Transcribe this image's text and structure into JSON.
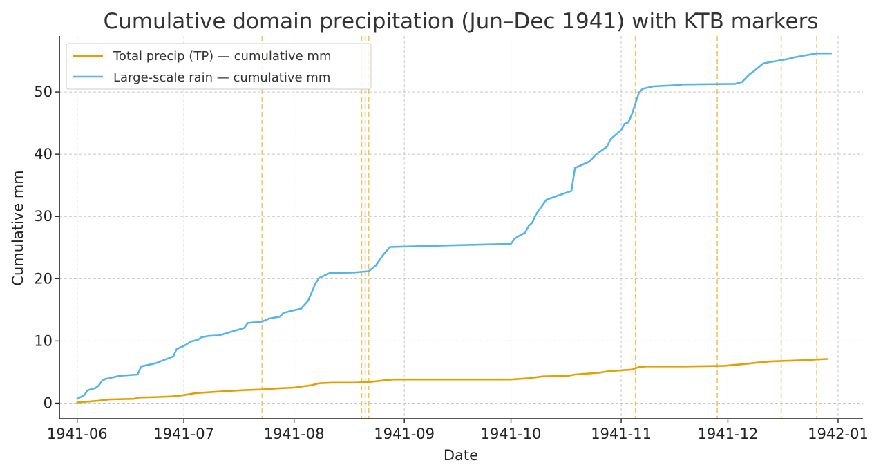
{
  "chart_data": {
    "type": "line",
    "title": "Cumulative domain precipitation (Jun–Dec 1941) with KTB markers",
    "xlabel": "Date",
    "ylabel": "Cumulative mm",
    "xlim": [
      "1941-05-27",
      "1942-01-08"
    ],
    "ylim": [
      -2.5,
      59
    ],
    "x_ticks": [
      "1941-06-01",
      "1941-07-01",
      "1941-08-01",
      "1941-09-01",
      "1941-10-01",
      "1941-11-01",
      "1941-12-01",
      "1942-01-01"
    ],
    "x_tick_labels": [
      "1941-06",
      "1941-07",
      "1941-08",
      "1941-09",
      "1941-10",
      "1941-11",
      "1941-12",
      "1942-01"
    ],
    "y_ticks": [
      0,
      10,
      20,
      30,
      40,
      50
    ],
    "y_tick_labels": [
      "0",
      "10",
      "20",
      "30",
      "40",
      "50"
    ],
    "grid": true,
    "legend_position": "top-left",
    "markers": {
      "color": "#f2c45a",
      "dates": [
        "1941-07-23",
        "1941-08-20",
        "1941-08-21",
        "1941-08-22",
        "1941-11-05",
        "1941-11-28",
        "1941-12-16",
        "1941-12-26"
      ]
    },
    "series": [
      {
        "name": "Total precip (TP) — cumulative mm",
        "color": "#e69f00",
        "points": [
          [
            "1941-06-01",
            0.1
          ],
          [
            "1941-06-05",
            0.3
          ],
          [
            "1941-06-07",
            0.4
          ],
          [
            "1941-06-10",
            0.6
          ],
          [
            "1941-06-17",
            0.7
          ],
          [
            "1941-06-18",
            0.9
          ],
          [
            "1941-06-24",
            1.0
          ],
          [
            "1941-06-28",
            1.1
          ],
          [
            "1941-07-01",
            1.3
          ],
          [
            "1941-07-04",
            1.6
          ],
          [
            "1941-07-09",
            1.8
          ],
          [
            "1941-07-18",
            2.1
          ],
          [
            "1941-07-23",
            2.2
          ],
          [
            "1941-07-28",
            2.4
          ],
          [
            "1941-08-01",
            2.5
          ],
          [
            "1941-08-06",
            2.9
          ],
          [
            "1941-08-08",
            3.2
          ],
          [
            "1941-08-12",
            3.3
          ],
          [
            "1941-08-18",
            3.3
          ],
          [
            "1941-08-22",
            3.4
          ],
          [
            "1941-08-27",
            3.7
          ],
          [
            "1941-08-29",
            3.8
          ],
          [
            "1941-09-15",
            3.8
          ],
          [
            "1941-10-01",
            3.8
          ],
          [
            "1941-10-06",
            4.0
          ],
          [
            "1941-10-10",
            4.3
          ],
          [
            "1941-10-17",
            4.4
          ],
          [
            "1941-10-19",
            4.6
          ],
          [
            "1941-10-26",
            4.9
          ],
          [
            "1941-10-28",
            5.1
          ],
          [
            "1941-11-04",
            5.4
          ],
          [
            "1941-11-06",
            5.8
          ],
          [
            "1941-11-08",
            5.9
          ],
          [
            "1941-11-19",
            5.9
          ],
          [
            "1941-11-30",
            6.0
          ],
          [
            "1941-12-06",
            6.3
          ],
          [
            "1941-12-09",
            6.5
          ],
          [
            "1941-12-13",
            6.7
          ],
          [
            "1941-12-22",
            6.9
          ],
          [
            "1941-12-29",
            7.1
          ]
        ]
      },
      {
        "name": "Large-scale rain — cumulative mm",
        "color": "#56b4e9",
        "points": [
          [
            "1941-06-01",
            0.7
          ],
          [
            "1941-06-02",
            1.0
          ],
          [
            "1941-06-03",
            1.3
          ],
          [
            "1941-06-04",
            2.1
          ],
          [
            "1941-06-06",
            2.4
          ],
          [
            "1941-06-07",
            2.8
          ],
          [
            "1941-06-08",
            3.6
          ],
          [
            "1941-06-09",
            3.9
          ],
          [
            "1941-06-10",
            4.0
          ],
          [
            "1941-06-13",
            4.4
          ],
          [
            "1941-06-18",
            4.6
          ],
          [
            "1941-06-19",
            5.9
          ],
          [
            "1941-06-23",
            6.4
          ],
          [
            "1941-06-28",
            7.5
          ],
          [
            "1941-06-29",
            8.7
          ],
          [
            "1941-07-01",
            9.2
          ],
          [
            "1941-07-03",
            9.9
          ],
          [
            "1941-07-05",
            10.2
          ],
          [
            "1941-07-06",
            10.6
          ],
          [
            "1941-07-08",
            10.8
          ],
          [
            "1941-07-11",
            10.9
          ],
          [
            "1941-07-18",
            12.1
          ],
          [
            "1941-07-19",
            12.9
          ],
          [
            "1941-07-23",
            13.1
          ],
          [
            "1941-07-25",
            13.6
          ],
          [
            "1941-07-28",
            13.9
          ],
          [
            "1941-07-29",
            14.5
          ],
          [
            "1941-07-31",
            14.8
          ],
          [
            "1941-08-03",
            15.2
          ],
          [
            "1941-08-05",
            16.5
          ],
          [
            "1941-08-07",
            19.2
          ],
          [
            "1941-08-08",
            20.1
          ],
          [
            "1941-08-11",
            20.9
          ],
          [
            "1941-08-18",
            21.0
          ],
          [
            "1941-08-22",
            21.2
          ],
          [
            "1941-08-24",
            22.1
          ],
          [
            "1941-08-26",
            23.8
          ],
          [
            "1941-08-28",
            25.1
          ],
          [
            "1941-10-01",
            25.6
          ],
          [
            "1941-10-02",
            26.4
          ],
          [
            "1941-10-03",
            26.8
          ],
          [
            "1941-10-05",
            27.4
          ],
          [
            "1941-10-06",
            28.5
          ],
          [
            "1941-10-07",
            29.0
          ],
          [
            "1941-10-08",
            30.3
          ],
          [
            "1941-10-11",
            32.7
          ],
          [
            "1941-10-18",
            34.1
          ],
          [
            "1941-10-19",
            37.8
          ],
          [
            "1941-10-23",
            38.8
          ],
          [
            "1941-10-25",
            40.0
          ],
          [
            "1941-10-28",
            41.2
          ],
          [
            "1941-10-29",
            42.4
          ],
          [
            "1941-11-01",
            43.9
          ],
          [
            "1941-11-02",
            44.9
          ],
          [
            "1941-11-03",
            45.1
          ],
          [
            "1941-11-04",
            46.4
          ],
          [
            "1941-11-06",
            49.9
          ],
          [
            "1941-11-07",
            50.5
          ],
          [
            "1941-11-10",
            50.9
          ],
          [
            "1941-11-17",
            51.1
          ],
          [
            "1941-11-18",
            51.2
          ],
          [
            "1941-12-03",
            51.3
          ],
          [
            "1941-12-05",
            51.6
          ],
          [
            "1941-12-07",
            52.8
          ],
          [
            "1941-12-08",
            53.2
          ],
          [
            "1941-12-11",
            54.6
          ],
          [
            "1941-12-15",
            55.0
          ],
          [
            "1941-12-18",
            55.3
          ],
          [
            "1941-12-20",
            55.6
          ],
          [
            "1941-12-26",
            56.2
          ],
          [
            "1941-12-30",
            56.2
          ]
        ]
      }
    ]
  }
}
